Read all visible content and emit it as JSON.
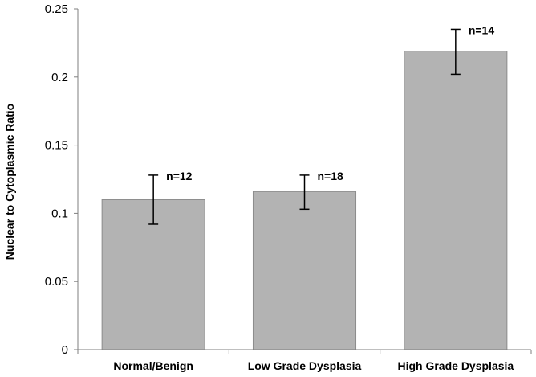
{
  "chart_data": {
    "type": "bar",
    "title": "",
    "xlabel": "",
    "ylabel": "Nuclear to Cytoplasmic Ratio",
    "ylim": [
      0,
      0.25
    ],
    "yticks": [
      "0",
      "0.05",
      "0.1",
      "0.15",
      "0.2",
      "0.25"
    ],
    "ytick_values": [
      0,
      0.05,
      0.1,
      0.15,
      0.2,
      0.25
    ],
    "categories": [
      "Normal/Benign",
      "Low Grade Dysplasia",
      "High Grade Dysplasia"
    ],
    "values": [
      0.11,
      0.116,
      0.219
    ],
    "error_low": [
      0.092,
      0.103,
      0.202
    ],
    "error_high": [
      0.128,
      0.128,
      0.235
    ],
    "data_labels": [
      "n=12",
      "n=18",
      "n=14"
    ],
    "grid": false,
    "legend": "none",
    "bar_color": "#b3b3b3",
    "bar_edge_color": "#8c8c8c"
  }
}
